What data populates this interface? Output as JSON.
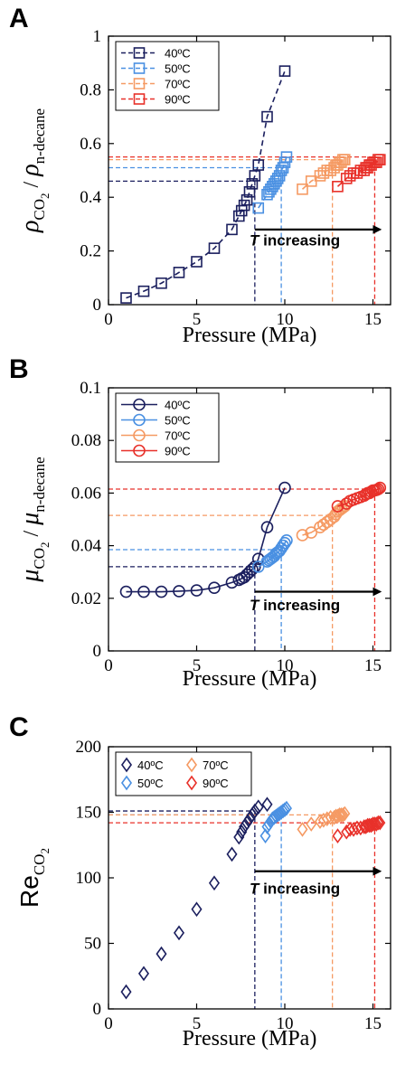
{
  "chart_data": [
    {
      "type": "line",
      "panel_label": "A",
      "xlabel": "Pressure (MPa)",
      "ylabel": "ρCO2 / ρn-decane",
      "ylabel_parts": {
        "main": "ρ",
        "sub1": "CO",
        "sub2": "2",
        "sep": " / ",
        "main2": "ρ",
        "sub3": "n-decane"
      },
      "xlim": [
        0,
        16
      ],
      "ylim": [
        0,
        1
      ],
      "xticks": [
        0,
        5,
        10,
        15
      ],
      "yticks": [
        0,
        0.2,
        0.4,
        0.6,
        0.8,
        1
      ],
      "ytick_labels": [
        "0",
        "0.2",
        "0.4",
        "0.6",
        "0.8",
        "1"
      ],
      "marker": "square",
      "legend_position": "top-left",
      "series": [
        {
          "name": "40ºC",
          "color": "#1b1f5e",
          "line_style": "dashed",
          "x": [
            1,
            2,
            3,
            4,
            5,
            6,
            7,
            7.4,
            7.55,
            7.7,
            7.85,
            8.0,
            8.15,
            8.3,
            8.5,
            9,
            10
          ],
          "y": [
            0.025,
            0.05,
            0.08,
            0.12,
            0.16,
            0.21,
            0.28,
            0.33,
            0.35,
            0.37,
            0.39,
            0.42,
            0.45,
            0.48,
            0.52,
            0.7,
            0.87
          ],
          "ref_x": 8.3,
          "ref_y": 0.46
        },
        {
          "name": "50ºC",
          "color": "#4a90e2",
          "line_style": "dashed",
          "x": [
            8.5,
            9.0,
            9.1,
            9.2,
            9.3,
            9.4,
            9.5,
            9.6,
            9.7,
            9.8,
            9.9,
            10.0,
            10.1
          ],
          "y": [
            0.36,
            0.41,
            0.42,
            0.43,
            0.44,
            0.45,
            0.46,
            0.47,
            0.48,
            0.5,
            0.51,
            0.53,
            0.55
          ],
          "ref_x": 9.8,
          "ref_y": 0.51
        },
        {
          "name": "70ºC",
          "color": "#f59a63",
          "line_style": "dashed",
          "x": [
            11,
            11.5,
            12,
            12.2,
            12.4,
            12.6,
            12.8,
            12.9,
            13.0,
            13.1,
            13.2,
            13.3,
            13.4
          ],
          "y": [
            0.43,
            0.46,
            0.48,
            0.49,
            0.5,
            0.5,
            0.51,
            0.52,
            0.52,
            0.53,
            0.53,
            0.54,
            0.54
          ],
          "ref_x": 12.7,
          "ref_y": 0.54
        },
        {
          "name": "90ºC",
          "color": "#e8312a",
          "line_style": "dashed",
          "x": [
            13,
            13.5,
            13.7,
            13.9,
            14.1,
            14.3,
            14.5,
            14.6,
            14.7,
            14.8,
            14.9,
            15.0,
            15.1,
            15.2,
            15.3,
            15.4
          ],
          "y": [
            0.44,
            0.47,
            0.48,
            0.49,
            0.49,
            0.5,
            0.5,
            0.51,
            0.51,
            0.52,
            0.52,
            0.53,
            0.53,
            0.53,
            0.54,
            0.54
          ],
          "ref_x": 15.1,
          "ref_y": 0.55
        }
      ],
      "annotation": {
        "prefix": "T",
        "text": " increasing",
        "arrow_from": [
          8.3,
          0.28
        ],
        "arrow_to": [
          15.5,
          0.28
        ],
        "label_at": [
          8.0,
          0.22
        ]
      }
    },
    {
      "type": "line",
      "panel_label": "B",
      "xlabel": "Pressure (MPa)",
      "ylabel": "μCO2 / μn-decane",
      "ylabel_parts": {
        "main": "μ",
        "sub1": "CO",
        "sub2": "2",
        "sep": " / ",
        "main2": "μ",
        "sub3": "n-decane"
      },
      "xlim": [
        0,
        16
      ],
      "ylim": [
        0,
        0.1
      ],
      "xticks": [
        0,
        5,
        10,
        15
      ],
      "yticks": [
        0,
        0.02,
        0.04,
        0.06,
        0.08,
        0.1
      ],
      "ytick_labels": [
        "0",
        "0.02",
        "0.04",
        "0.06",
        "0.08",
        "0.1"
      ],
      "marker": "circle",
      "legend_position": "top-left",
      "series": [
        {
          "name": "40ºC",
          "color": "#1b1f5e",
          "line_style": "solid",
          "x": [
            1,
            2,
            3,
            4,
            5,
            6,
            7,
            7.4,
            7.55,
            7.7,
            7.85,
            8.0,
            8.15,
            8.3,
            8.5,
            9,
            10
          ],
          "y": [
            0.0225,
            0.0225,
            0.0225,
            0.0227,
            0.023,
            0.024,
            0.026,
            0.027,
            0.0275,
            0.028,
            0.029,
            0.03,
            0.031,
            0.032,
            0.035,
            0.047,
            0.062
          ],
          "ref_x": 8.3,
          "ref_y": 0.032
        },
        {
          "name": "50ºC",
          "color": "#4a90e2",
          "line_style": "solid",
          "x": [
            8.5,
            9.0,
            9.1,
            9.2,
            9.3,
            9.4,
            9.5,
            9.6,
            9.7,
            9.8,
            9.9,
            10.0,
            10.1
          ],
          "y": [
            0.032,
            0.034,
            0.0345,
            0.035,
            0.0355,
            0.036,
            0.037,
            0.0375,
            0.038,
            0.039,
            0.04,
            0.041,
            0.042
          ],
          "ref_x": 9.8,
          "ref_y": 0.0385
        },
        {
          "name": "70ºC",
          "color": "#f59a63",
          "line_style": "solid",
          "x": [
            11,
            11.5,
            12,
            12.2,
            12.4,
            12.6,
            12.8,
            12.9,
            13.0,
            13.1,
            13.2,
            13.3,
            13.4
          ],
          "y": [
            0.044,
            0.045,
            0.047,
            0.048,
            0.049,
            0.05,
            0.051,
            0.052,
            0.053,
            0.0535,
            0.054,
            0.0545,
            0.055
          ],
          "ref_x": 12.7,
          "ref_y": 0.0515
        },
        {
          "name": "90ºC",
          "color": "#e8312a",
          "line_style": "solid",
          "x": [
            13,
            13.5,
            13.7,
            13.9,
            14.1,
            14.3,
            14.5,
            14.6,
            14.7,
            14.8,
            14.9,
            15.0,
            15.1,
            15.2,
            15.3,
            15.4
          ],
          "y": [
            0.055,
            0.056,
            0.057,
            0.0575,
            0.058,
            0.0585,
            0.059,
            0.0595,
            0.06,
            0.06,
            0.0605,
            0.061,
            0.061,
            0.0612,
            0.0615,
            0.062
          ],
          "ref_x": 15.1,
          "ref_y": 0.0615
        }
      ],
      "annotation": {
        "prefix": "T",
        "text": " increasing",
        "arrow_from": [
          8.3,
          0.0225
        ],
        "arrow_to": [
          15.5,
          0.0225
        ],
        "label_at": [
          8.0,
          0.0155
        ]
      }
    },
    {
      "type": "scatter",
      "panel_label": "C",
      "xlabel": "Pressure (MPa)",
      "ylabel": "ReCO2",
      "ylabel_parts": {
        "main": "Re",
        "sub1": "CO",
        "sub2": "2",
        "sep": "",
        "main2": "",
        "sub3": ""
      },
      "xlim": [
        0,
        16
      ],
      "ylim": [
        0,
        200
      ],
      "xticks": [
        0,
        5,
        10,
        15
      ],
      "yticks": [
        0,
        50,
        100,
        150,
        200
      ],
      "ytick_labels": [
        "0",
        "50",
        "100",
        "150",
        "200"
      ],
      "marker": "diamond",
      "legend_position": "top-left",
      "legend_columns": 2,
      "series": [
        {
          "name": "40ºC",
          "color": "#1b1f5e",
          "x": [
            1,
            2,
            3,
            4,
            5,
            6,
            7,
            7.4,
            7.55,
            7.7,
            7.85,
            8.0,
            8.15,
            8.3,
            8.5,
            9
          ],
          "y": [
            13,
            27,
            42,
            58,
            76,
            96,
            118,
            131,
            135,
            139,
            142,
            145,
            148,
            151,
            154,
            156
          ],
          "ref_x": 8.3,
          "ref_y": 151
        },
        {
          "name": "50ºC",
          "color": "#4a90e2",
          "x": [
            8.9,
            9.0,
            9.1,
            9.2,
            9.3,
            9.4,
            9.5,
            9.6,
            9.7,
            9.8,
            9.9,
            10.0,
            10.1
          ],
          "y": [
            132,
            139,
            141,
            143,
            145,
            146,
            147,
            148,
            149,
            150,
            151,
            152,
            153
          ],
          "ref_x": 9.8,
          "ref_y": 148
        },
        {
          "name": "70ºC",
          "color": "#f59a63",
          "x": [
            11,
            11.5,
            12,
            12.2,
            12.4,
            12.6,
            12.8,
            12.9,
            13.0,
            13.1,
            13.2,
            13.3,
            13.4
          ],
          "y": [
            137,
            141,
            143,
            144,
            145,
            146,
            146,
            147,
            147,
            148,
            148,
            148,
            149
          ],
          "ref_x": 12.7,
          "ref_y": 148
        },
        {
          "name": "90ºC",
          "color": "#e8312a",
          "x": [
            13,
            13.5,
            13.7,
            13.9,
            14.1,
            14.3,
            14.5,
            14.6,
            14.7,
            14.8,
            14.9,
            15.0,
            15.1,
            15.2,
            15.3,
            15.4
          ],
          "y": [
            132,
            135,
            137,
            137,
            138,
            138,
            139,
            139,
            140,
            140,
            140,
            141,
            141,
            141,
            142,
            142
          ],
          "ref_x": 15.1,
          "ref_y": 142
        }
      ],
      "annotation": {
        "prefix": "T",
        "text": " increasing",
        "arrow_from": [
          8.3,
          105
        ],
        "arrow_to": [
          15.5,
          105
        ],
        "label_at": [
          8.0,
          88
        ]
      }
    }
  ]
}
